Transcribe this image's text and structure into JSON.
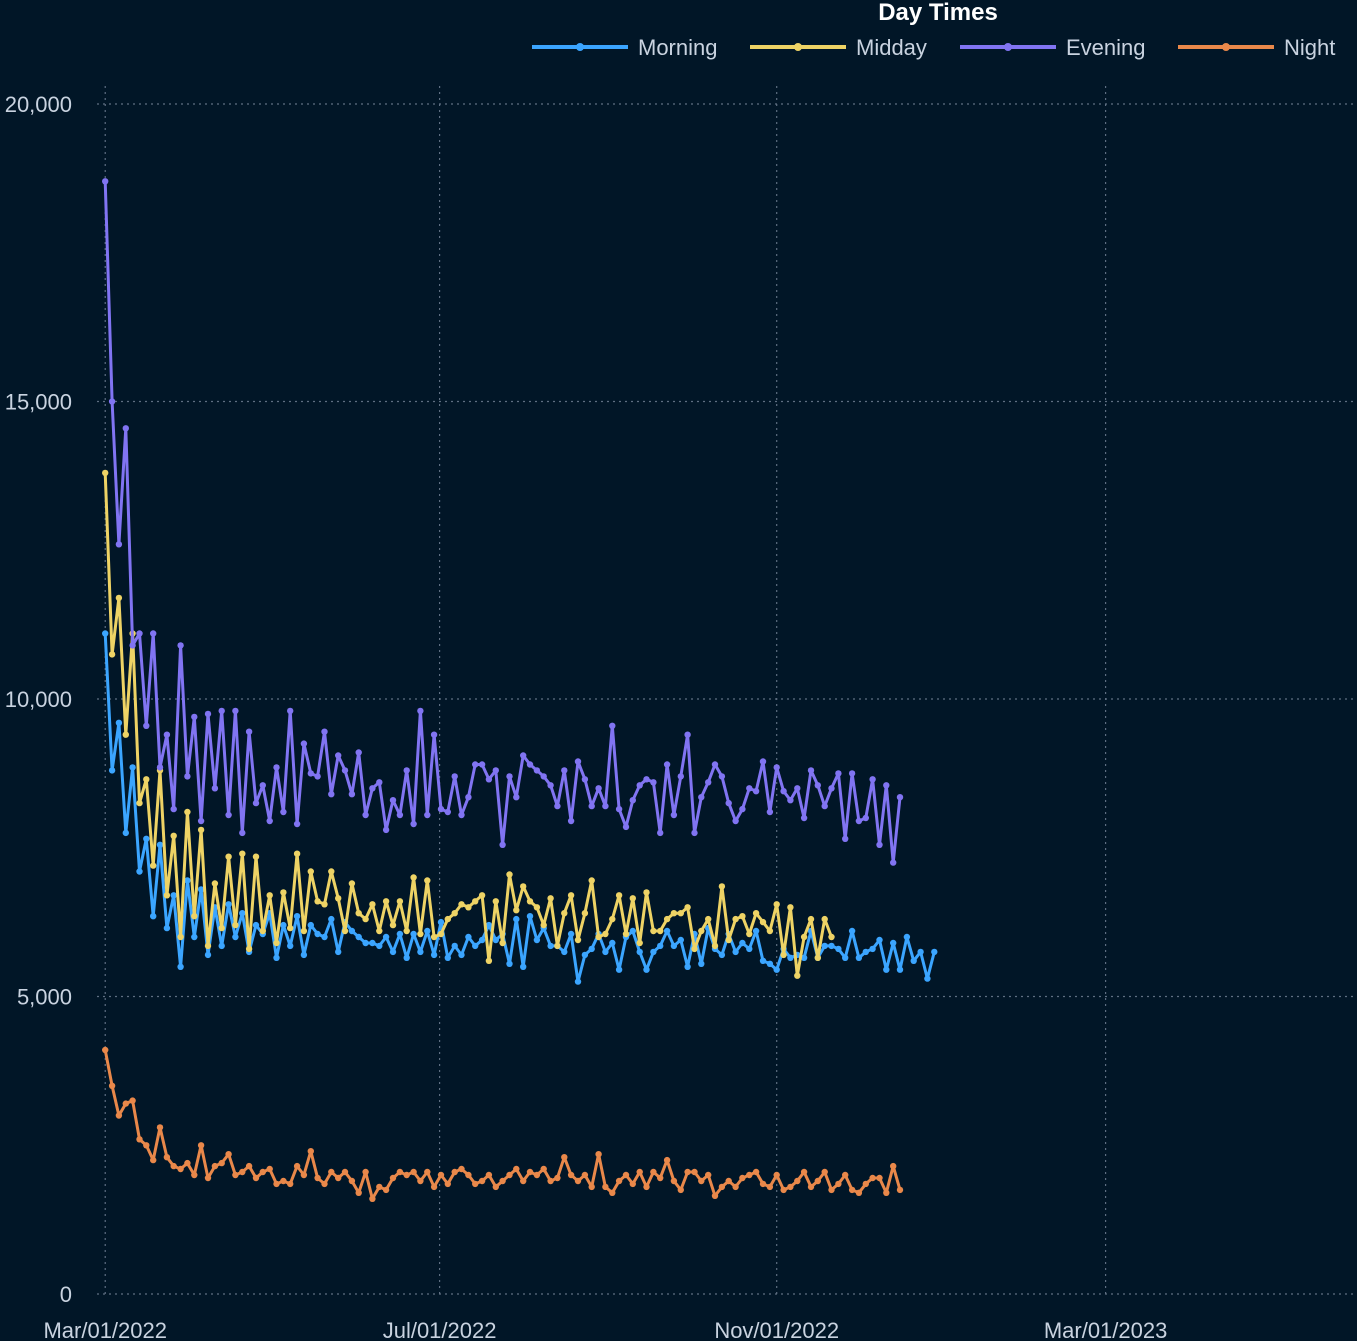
{
  "chart_data": {
    "type": "line",
    "legend_title": "Day Times",
    "legend_position": "top-right",
    "y_ticks": [
      0,
      5000,
      10000,
      15000,
      20000
    ],
    "y_tick_labels": [
      "0",
      "5,000",
      "10,000",
      "15,000",
      "20,000"
    ],
    "ylim": [
      0,
      20000
    ],
    "x_domain_start": "2022-02-26",
    "x_domain_end": "2023-05-31",
    "x_ticks": [
      "2022-03-01",
      "2022-07-01",
      "2022-11-01",
      "2023-03-01"
    ],
    "x_tick_labels": [
      "Mar/01/2022",
      "Jul/01/2022",
      "Nov/01/2022",
      "Mar/01/2023"
    ],
    "grid": true,
    "start_date": "2022-03-01",
    "interval_days": 2.5,
    "series": [
      {
        "name": "Morning",
        "color": "#3ba5ff",
        "values": [
          11100,
          8800,
          9600,
          7750,
          8850,
          7100,
          7650,
          6350,
          7550,
          6150,
          6700,
          5500,
          6950,
          6000,
          6800,
          5700,
          6500,
          5850,
          6550,
          6000,
          6400,
          5750,
          6200,
          6050,
          6400,
          5650,
          6200,
          5850,
          6350,
          5700,
          6200,
          6050,
          6000,
          6300,
          5750,
          6250,
          6100,
          6000,
          5900,
          5900,
          5850,
          6000,
          5750,
          6050,
          5650,
          6050,
          5750,
          6100,
          5700,
          6250,
          5650,
          5850,
          5700,
          6000,
          5850,
          5950,
          6200,
          5950,
          6050,
          5550,
          6300,
          5500,
          6350,
          5950,
          6150,
          5850,
          5850,
          5750,
          6050,
          5250,
          5700,
          5800,
          6050,
          5750,
          5900,
          5450,
          6000,
          6100,
          5750,
          5450,
          5750,
          5850,
          6100,
          5850,
          5950,
          5500,
          6050,
          5550,
          6150,
          5800,
          5700,
          6050,
          5750,
          5900,
          5800,
          6100,
          5600,
          5550,
          5450,
          5800,
          5650,
          5700,
          5650,
          6100,
          5650,
          5850,
          5850,
          5800,
          5650,
          6100,
          5650,
          5750,
          5800,
          5950,
          5450,
          5900,
          5450,
          6000,
          5600,
          5750,
          5300,
          5750
        ]
      },
      {
        "name": "Midday",
        "color": "#eed365",
        "values": [
          13800,
          10750,
          11700,
          9400,
          11100,
          8250,
          8650,
          7200,
          8800,
          6700,
          7700,
          6000,
          8100,
          6350,
          7800,
          5850,
          6900,
          6150,
          7350,
          6200,
          7400,
          5800,
          7350,
          6100,
          6700,
          5900,
          6750,
          6150,
          7400,
          6100,
          7100,
          6600,
          6550,
          7100,
          6650,
          6100,
          6900,
          6400,
          6300,
          6550,
          6100,
          6600,
          6200,
          6600,
          6100,
          7000,
          6050,
          6950,
          6000,
          6050,
          6300,
          6400,
          6550,
          6500,
          6600,
          6700,
          5600,
          6600,
          5900,
          7050,
          6450,
          6850,
          6600,
          6500,
          6200,
          6650,
          5850,
          6400,
          6700,
          5950,
          6400,
          6950,
          6000,
          6050,
          6300,
          6700,
          6050,
          6650,
          5900,
          6750,
          6100,
          6100,
          6300,
          6400,
          6400,
          6500,
          5800,
          6100,
          6300,
          5850,
          6850,
          5950,
          6300,
          6350,
          6050,
          6400,
          6250,
          6100,
          6550,
          5700,
          6500,
          5350,
          6000,
          6300,
          5650,
          6300,
          6000
        ]
      },
      {
        "name": "Evening",
        "color": "#8174f2",
        "values": [
          18700,
          15000,
          12600,
          14550,
          10900,
          11100,
          9550,
          11100,
          8850,
          9400,
          8150,
          10900,
          8700,
          9700,
          7950,
          9750,
          8500,
          9800,
          8050,
          9800,
          7750,
          9450,
          8250,
          8550,
          7950,
          8850,
          8100,
          9800,
          7900,
          9250,
          8750,
          8700,
          9450,
          8400,
          9050,
          8800,
          8400,
          9100,
          8050,
          8500,
          8600,
          7800,
          8300,
          8050,
          8800,
          7900,
          9800,
          8050,
          9400,
          8150,
          8100,
          8700,
          8050,
          8350,
          8900,
          8900,
          8650,
          8800,
          7550,
          8700,
          8350,
          9050,
          8900,
          8800,
          8700,
          8550,
          8200,
          8800,
          7950,
          8950,
          8650,
          8200,
          8500,
          8200,
          9550,
          8150,
          7850,
          8300,
          8550,
          8650,
          8600,
          7750,
          8900,
          8050,
          8700,
          9400,
          7750,
          8350,
          8600,
          8900,
          8700,
          8250,
          7950,
          8150,
          8500,
          8450,
          8950,
          8100,
          8850,
          8450,
          8300,
          8500,
          8000,
          8800,
          8550,
          8200,
          8500,
          8750,
          7650,
          8750,
          7950,
          8000,
          8650,
          7550,
          8550,
          7250,
          8350
        ]
      },
      {
        "name": "Night",
        "color": "#e9884a",
        "values": [
          4100,
          3500,
          3000,
          3200,
          3250,
          2600,
          2500,
          2250,
          2800,
          2300,
          2150,
          2100,
          2200,
          2000,
          2500,
          1950,
          2150,
          2200,
          2350,
          2000,
          2050,
          2150,
          1950,
          2050,
          2100,
          1850,
          1900,
          1850,
          2150,
          2000,
          2400,
          1950,
          1850,
          2050,
          1950,
          2050,
          1900,
          1700,
          2050,
          1600,
          1800,
          1750,
          1950,
          2050,
          2000,
          2050,
          1900,
          2050,
          1800,
          2000,
          1850,
          2050,
          2100,
          2000,
          1850,
          1900,
          2000,
          1800,
          1900,
          2000,
          2100,
          1900,
          2050,
          2000,
          2100,
          1900,
          1950,
          2300,
          2000,
          1900,
          2000,
          1800,
          2350,
          1800,
          1700,
          1900,
          2000,
          1850,
          2050,
          1800,
          2050,
          1950,
          2250,
          1900,
          1750,
          2050,
          2050,
          1900,
          2000,
          1650,
          1800,
          1900,
          1800,
          1950,
          2000,
          2050,
          1850,
          1800,
          2000,
          1750,
          1800,
          1900,
          2050,
          1800,
          1900,
          2050,
          1750,
          1850,
          2000,
          1750,
          1700,
          1850,
          1950,
          1950,
          1700,
          2150,
          1750
        ]
      }
    ]
  }
}
